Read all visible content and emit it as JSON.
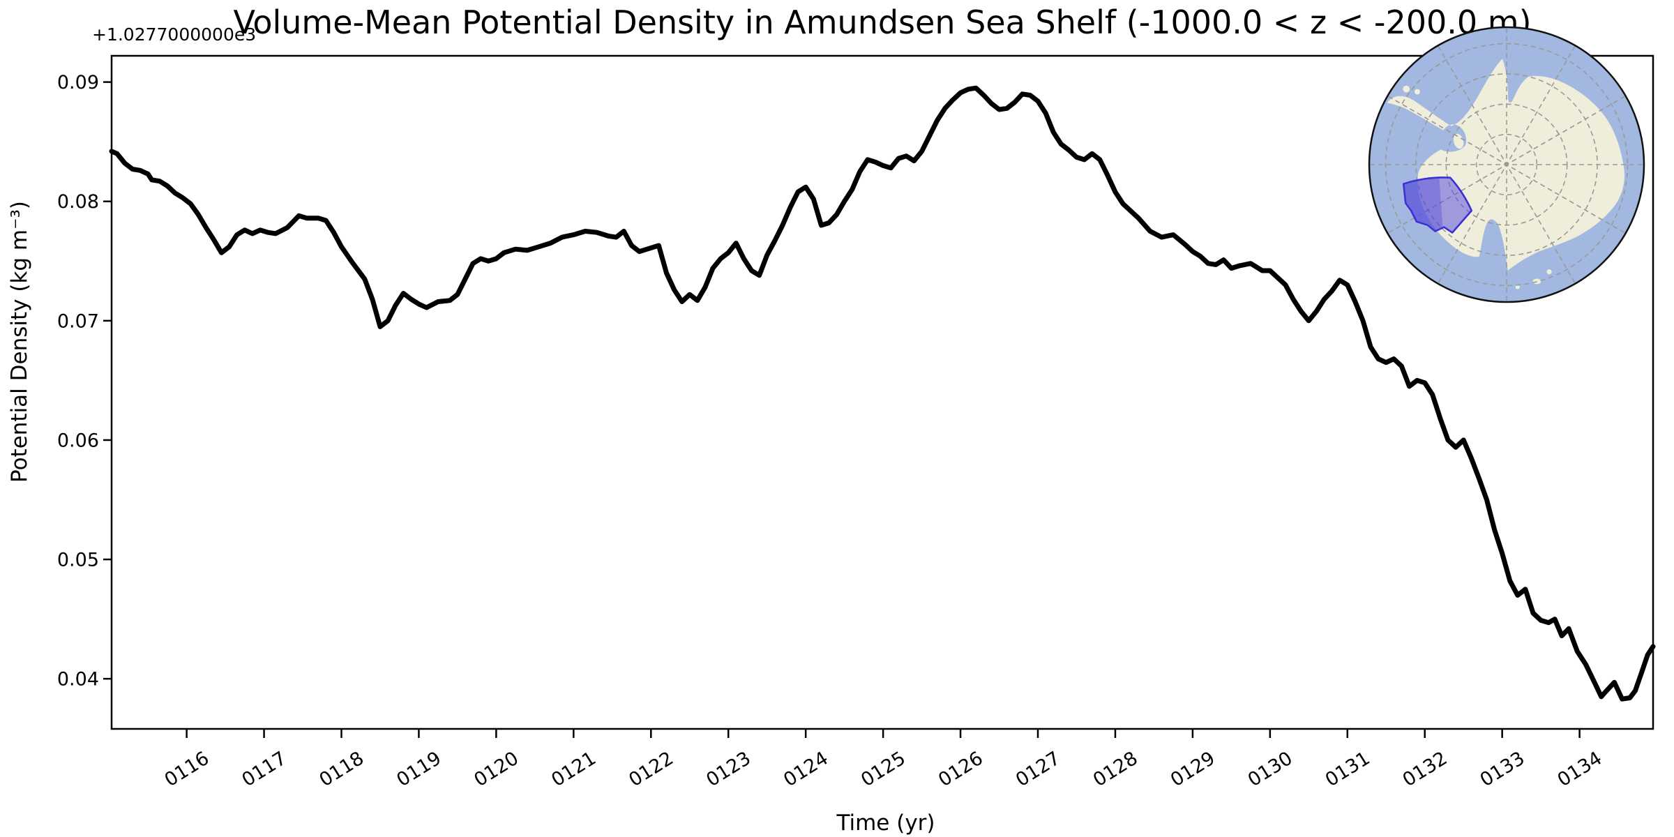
{
  "chart_data": {
    "type": "line",
    "title": "Volume-Mean Potential Density in Amundsen Sea Shelf (-1000.0 < z < -200.0 m)",
    "xlabel": "Time (yr)",
    "ylabel": "Potential Density (kg m⁻³)",
    "y_offset_text": "+1.0277000000e3",
    "xlim": [
      115.03,
      134.95
    ],
    "ylim": [
      0.0358,
      0.0922
    ],
    "grid": false,
    "legend": null,
    "line_color": "#000000",
    "spine_color": "#000000",
    "background": "#ffffff",
    "x_ticks": {
      "values": [
        116,
        117,
        118,
        119,
        120,
        121,
        122,
        123,
        124,
        125,
        126,
        127,
        128,
        129,
        130,
        131,
        132,
        133,
        134
      ],
      "labels": [
        "0116",
        "0117",
        "0118",
        "0119",
        "0120",
        "0121",
        "0122",
        "0123",
        "0124",
        "0125",
        "0126",
        "0127",
        "0128",
        "0129",
        "0130",
        "0131",
        "0132",
        "0133",
        "0134"
      ],
      "rotation_deg": -32
    },
    "y_ticks": {
      "values": [
        0.04,
        0.05,
        0.06,
        0.07,
        0.08,
        0.09
      ],
      "labels": [
        "0.04",
        "0.05",
        "0.06",
        "0.07",
        "0.08",
        "0.09"
      ]
    },
    "series": [
      {
        "name": "volume-mean potential density",
        "x": [
          115.03,
          115.1,
          115.2,
          115.3,
          115.4,
          115.5,
          115.55,
          115.65,
          115.75,
          115.85,
          115.95,
          116.05,
          116.15,
          116.25,
          116.35,
          116.45,
          116.55,
          116.65,
          116.75,
          116.85,
          116.95,
          117.05,
          117.15,
          117.3,
          117.45,
          117.55,
          117.7,
          117.8,
          117.9,
          118.0,
          118.15,
          118.3,
          118.4,
          118.5,
          118.6,
          118.7,
          118.8,
          118.9,
          119.0,
          119.1,
          119.25,
          119.4,
          119.5,
          119.6,
          119.7,
          119.8,
          119.9,
          120.0,
          120.1,
          120.25,
          120.4,
          120.55,
          120.7,
          120.85,
          121.0,
          121.15,
          121.3,
          121.45,
          121.55,
          121.65,
          121.75,
          121.85,
          121.95,
          122.1,
          122.2,
          122.3,
          122.4,
          122.5,
          122.6,
          122.7,
          122.8,
          122.9,
          123.0,
          123.1,
          123.2,
          123.3,
          123.4,
          123.5,
          123.6,
          123.7,
          123.8,
          123.9,
          124.0,
          124.1,
          124.2,
          124.3,
          124.4,
          124.5,
          124.6,
          124.7,
          124.8,
          124.9,
          125.0,
          125.1,
          125.2,
          125.3,
          125.4,
          125.5,
          125.6,
          125.7,
          125.8,
          125.9,
          126.0,
          126.1,
          126.2,
          126.3,
          126.4,
          126.5,
          126.6,
          126.7,
          126.8,
          126.9,
          127.0,
          127.1,
          127.2,
          127.3,
          127.4,
          127.5,
          127.6,
          127.7,
          127.8,
          127.9,
          128.0,
          128.1,
          128.2,
          128.3,
          128.45,
          128.6,
          128.75,
          128.9,
          129.0,
          129.1,
          129.2,
          129.3,
          129.4,
          129.5,
          129.6,
          129.75,
          129.9,
          130.0,
          130.1,
          130.2,
          130.3,
          130.4,
          130.5,
          130.6,
          130.7,
          130.8,
          130.9,
          131.0,
          131.1,
          131.2,
          131.3,
          131.4,
          131.5,
          131.6,
          131.7,
          131.8,
          131.9,
          132.0,
          132.1,
          132.2,
          132.3,
          132.4,
          132.5,
          132.6,
          132.7,
          132.8,
          132.9,
          133.0,
          133.1,
          133.2,
          133.3,
          133.4,
          133.5,
          133.6,
          133.68,
          133.77,
          133.86,
          133.97,
          134.08,
          134.2,
          134.28,
          134.35,
          134.45,
          134.55,
          134.65,
          134.72,
          134.8,
          134.88,
          134.95
        ],
        "y": [
          0.0842,
          0.084,
          0.0832,
          0.0827,
          0.0826,
          0.0823,
          0.0818,
          0.0817,
          0.0813,
          0.0807,
          0.0803,
          0.0798,
          0.0789,
          0.0778,
          0.0768,
          0.0757,
          0.0762,
          0.0772,
          0.0776,
          0.0773,
          0.0776,
          0.0774,
          0.0773,
          0.0778,
          0.0788,
          0.0786,
          0.0786,
          0.0784,
          0.0774,
          0.0762,
          0.0748,
          0.0735,
          0.0718,
          0.0695,
          0.07,
          0.0713,
          0.0723,
          0.0718,
          0.0714,
          0.0711,
          0.0716,
          0.0717,
          0.0722,
          0.0735,
          0.0748,
          0.0752,
          0.075,
          0.0752,
          0.0757,
          0.076,
          0.0759,
          0.0762,
          0.0765,
          0.077,
          0.0772,
          0.0775,
          0.0774,
          0.0771,
          0.077,
          0.0775,
          0.0763,
          0.0758,
          0.076,
          0.0763,
          0.074,
          0.0726,
          0.0716,
          0.0722,
          0.0717,
          0.0728,
          0.0744,
          0.0752,
          0.0757,
          0.0765,
          0.0752,
          0.0742,
          0.0738,
          0.0755,
          0.0767,
          0.078,
          0.0795,
          0.0808,
          0.0812,
          0.0802,
          0.078,
          0.0782,
          0.0789,
          0.08,
          0.081,
          0.0825,
          0.0835,
          0.0833,
          0.083,
          0.0828,
          0.0836,
          0.0838,
          0.0834,
          0.0842,
          0.0855,
          0.0868,
          0.0878,
          0.0885,
          0.0891,
          0.0894,
          0.0895,
          0.0889,
          0.0882,
          0.0877,
          0.0878,
          0.0883,
          0.089,
          0.0889,
          0.0884,
          0.0874,
          0.0858,
          0.0848,
          0.0843,
          0.0837,
          0.0835,
          0.084,
          0.0835,
          0.0822,
          0.0808,
          0.0798,
          0.0792,
          0.0786,
          0.0775,
          0.077,
          0.0772,
          0.0764,
          0.0758,
          0.0754,
          0.0748,
          0.0747,
          0.0751,
          0.0744,
          0.0746,
          0.0748,
          0.0742,
          0.0742,
          0.0736,
          0.073,
          0.0718,
          0.0708,
          0.07,
          0.0708,
          0.0718,
          0.0725,
          0.0734,
          0.073,
          0.0716,
          0.07,
          0.0678,
          0.0668,
          0.0665,
          0.0668,
          0.0662,
          0.0645,
          0.065,
          0.0648,
          0.0638,
          0.0618,
          0.06,
          0.0594,
          0.06,
          0.0585,
          0.0568,
          0.055,
          0.0525,
          0.0505,
          0.0482,
          0.047,
          0.0475,
          0.0455,
          0.0449,
          0.0447,
          0.045,
          0.0436,
          0.0442,
          0.0423,
          0.0412,
          0.0396,
          0.0385,
          0.039,
          0.0397,
          0.0383,
          0.0384,
          0.039,
          0.0405,
          0.042,
          0.0427
        ]
      }
    ]
  },
  "inset_map": {
    "ocean_color": "#a2b8e1",
    "land_color": "#efeedb",
    "grid_color": "#999999",
    "boundary_color": "#111111",
    "highlight_fill": "rgba(95,85,220,0.55)",
    "highlight_fill_dark": "rgba(70,60,215,0.32)",
    "highlight_stroke": "#3a2ed8"
  }
}
